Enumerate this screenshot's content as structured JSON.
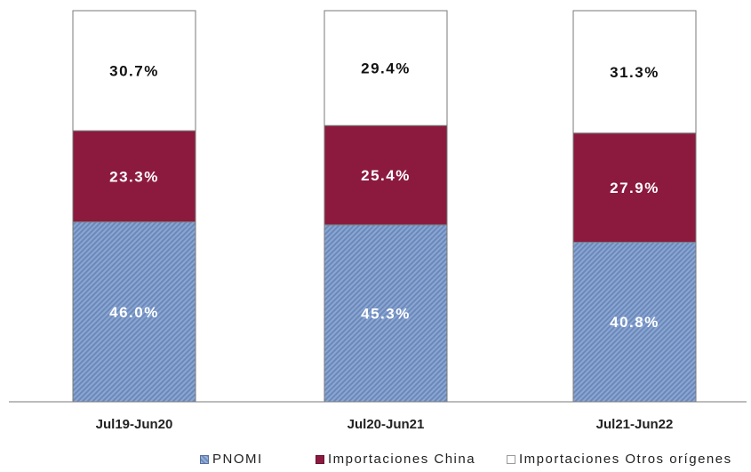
{
  "chart_data": {
    "type": "bar",
    "stacked": true,
    "categories": [
      "Jul19-Jun20",
      "Jul20-Jun21",
      "Jul21-Jun22"
    ],
    "series": [
      {
        "name": "PNOMI",
        "values": [
          46.0,
          45.3,
          40.8
        ],
        "labels": [
          "46.0%",
          "45.3%",
          "40.8%"
        ],
        "color": "#7f9ccc"
      },
      {
        "name": "Importaciones China",
        "values": [
          23.3,
          25.4,
          27.9
        ],
        "labels": [
          "23.3%",
          "25.4%",
          "27.9%"
        ],
        "color": "#8c1a3f"
      },
      {
        "name": "Importaciones Otros orígenes",
        "values": [
          30.7,
          29.4,
          31.3
        ],
        "labels": [
          "30.7%",
          "29.4%",
          "31.3%"
        ],
        "color": "#ffffff"
      }
    ],
    "ylim": [
      0,
      100
    ],
    "grid": false,
    "legend_position": "bottom"
  }
}
